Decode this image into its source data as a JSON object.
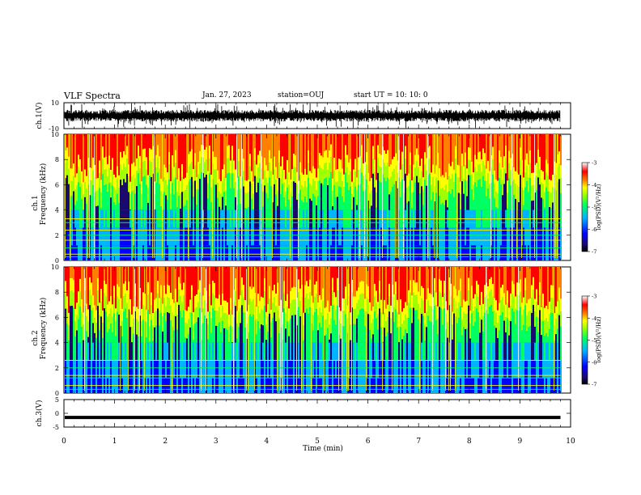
{
  "header": {
    "title": "VLF Spectra",
    "date": "Jan. 27, 2023",
    "station": "station=OUJ",
    "start": "start  UT =   10: 10: 0"
  },
  "chart_data": [
    {
      "type": "line",
      "panel": "ch1-waveform",
      "ylabel": "ch.1(V)",
      "ylim": [
        -10,
        10
      ],
      "yticks": [
        "10",
        "-10"
      ],
      "xlim": [
        0,
        10
      ],
      "note": "dense noisy waveform centered near 0 V with spikes up to about 10 V"
    },
    {
      "type": "heatmap",
      "panel": "ch1-spectrogram",
      "ylabel_line1": "ch.1",
      "ylabel_line2": "Frequency  (kHz)",
      "ylim": [
        0,
        10
      ],
      "yticks": [
        "0",
        "2",
        "4",
        "6",
        "8",
        "10"
      ],
      "xlim": [
        0,
        9.8
      ],
      "colorbar": {
        "label": "log(PSD)(V²/Hz)",
        "range": [
          -7,
          -3
        ],
        "ticks": [
          "-3",
          "-4",
          "-5",
          "-6",
          "-7"
        ]
      },
      "lines_khz": [
        0.3,
        0.5,
        1.0,
        1.6,
        2.0,
        2.4,
        3.0,
        3.3
      ]
    },
    {
      "type": "heatmap",
      "panel": "ch2-spectrogram",
      "ylabel_line1": "ch.2",
      "ylabel_line2": "Frequency  (kHz)",
      "ylim": [
        0,
        10
      ],
      "yticks": [
        "0",
        "2",
        "4",
        "6",
        "8",
        "10"
      ],
      "xlim": [
        0,
        9.8
      ],
      "colorbar": {
        "label": "log(PSD)(V²/Hz)",
        "range": [
          -7,
          -3
        ],
        "ticks": [
          "-3",
          "-4",
          "-5",
          "-6",
          "-7"
        ]
      },
      "lines_khz": [
        0.3,
        0.6,
        1.2,
        1.4,
        2.0,
        2.6
      ]
    },
    {
      "type": "line",
      "panel": "ch3-waveform",
      "ylabel": "ch.3(V)",
      "ylim": [
        -5,
        5
      ],
      "yticks": [
        "5",
        "0",
        "-5"
      ],
      "xlim": [
        0,
        9.8
      ],
      "value": -1.5
    }
  ],
  "xaxis": {
    "label": "Time  (min)",
    "ticks": [
      "0",
      "1",
      "2",
      "3",
      "4",
      "5",
      "6",
      "7",
      "8",
      "9",
      "10"
    ]
  },
  "colors": {
    "cmap": [
      "#1a0a6e",
      "#0000ff",
      "#00b4ff",
      "#00ff60",
      "#a0ff00",
      "#ffff00",
      "#ff8000",
      "#ff0000",
      "#ffffff"
    ],
    "trace": "#000000"
  }
}
